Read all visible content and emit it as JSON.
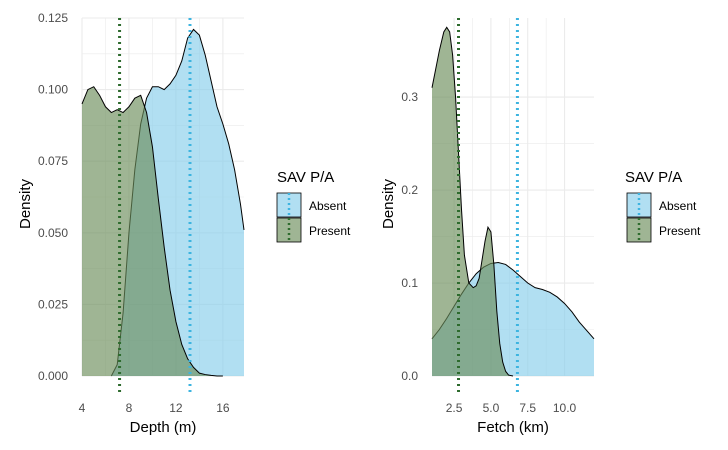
{
  "colors": {
    "absent_fill": "#87CEEB",
    "present_fill": "#6B8E5A",
    "absent_line": "#3DB4E0",
    "present_line": "#2E6B2E",
    "grid": "#ebebeb"
  },
  "chart_data": [
    {
      "type": "area",
      "subtype": "density",
      "title": "",
      "xlabel": "Depth (m)",
      "ylabel": "Density",
      "xlim": [
        4,
        17.8
      ],
      "ylim": [
        0,
        0.125
      ],
      "x_ticks": [
        4,
        8,
        12,
        16
      ],
      "x_tick_labels": [
        "4",
        "8",
        "12",
        "16"
      ],
      "y_ticks": [
        0,
        0.025,
        0.05,
        0.075,
        0.1,
        0.125
      ],
      "y_tick_labels": [
        "0.000",
        "0.025",
        "0.050",
        "0.075",
        "0.100",
        "0.125"
      ],
      "grid": true,
      "legend": {
        "title": "SAV P/A",
        "placement": "right",
        "entries": [
          "Absent",
          "Present"
        ]
      },
      "series": [
        {
          "name": "Absent",
          "color": "#87CEEB",
          "mean_line": 13.2,
          "x": [
            6.5,
            7.0,
            7.5,
            8.0,
            8.5,
            9.0,
            9.5,
            10.0,
            10.5,
            11.0,
            11.5,
            12.0,
            12.5,
            13.0,
            13.5,
            14.0,
            14.5,
            15.0,
            15.5,
            16.0,
            16.5,
            17.0,
            17.5,
            17.8
          ],
          "y": [
            0.0,
            0.004,
            0.022,
            0.05,
            0.072,
            0.088,
            0.097,
            0.101,
            0.101,
            0.1,
            0.102,
            0.105,
            0.11,
            0.118,
            0.121,
            0.119,
            0.112,
            0.103,
            0.094,
            0.088,
            0.081,
            0.072,
            0.06,
            0.051
          ]
        },
        {
          "name": "Present",
          "color": "#6B8E5A",
          "mean_line": 7.2,
          "x": [
            4.0,
            4.5,
            5.0,
            5.5,
            6.0,
            6.5,
            7.0,
            7.5,
            8.0,
            8.5,
            9.0,
            9.5,
            10.0,
            10.5,
            11.0,
            11.5,
            12.0,
            12.5,
            13.0,
            13.5,
            14.0,
            14.5,
            15.0,
            15.5,
            16.0
          ],
          "y": [
            0.095,
            0.1,
            0.101,
            0.098,
            0.094,
            0.092,
            0.093,
            0.092,
            0.094,
            0.097,
            0.098,
            0.092,
            0.08,
            0.062,
            0.045,
            0.03,
            0.019,
            0.011,
            0.006,
            0.003,
            0.001,
            0.0005,
            0.0002,
            0.0,
            0.0
          ]
        }
      ]
    },
    {
      "type": "area",
      "subtype": "density",
      "title": "",
      "xlabel": "Fetch (km)",
      "ylabel": "Density",
      "xlim": [
        1.0,
        12.0
      ],
      "ylim": [
        0,
        0.385
      ],
      "x_ticks": [
        2.5,
        5.0,
        7.5,
        10.0
      ],
      "x_tick_labels": [
        "2.5",
        "5.0",
        "7.5",
        "10.0"
      ],
      "y_ticks": [
        0,
        0.1,
        0.2,
        0.3
      ],
      "y_tick_labels": [
        "0.0",
        "0.1",
        "0.2",
        "0.3"
      ],
      "grid": true,
      "legend": {
        "title": "SAV P/A",
        "placement": "right",
        "entries": [
          "Absent",
          "Present"
        ]
      },
      "series": [
        {
          "name": "Absent",
          "color": "#87CEEB",
          "mean_line": 6.8,
          "x": [
            1.0,
            1.5,
            2.0,
            2.5,
            3.0,
            3.5,
            4.0,
            4.5,
            5.0,
            5.5,
            6.0,
            6.5,
            7.0,
            7.5,
            8.0,
            8.5,
            9.0,
            9.5,
            10.0,
            10.5,
            11.0,
            11.5,
            12.0
          ],
          "y": [
            0.04,
            0.05,
            0.062,
            0.075,
            0.088,
            0.1,
            0.11,
            0.117,
            0.121,
            0.122,
            0.12,
            0.114,
            0.107,
            0.1,
            0.095,
            0.093,
            0.09,
            0.085,
            0.078,
            0.069,
            0.058,
            0.049,
            0.04
          ]
        },
        {
          "name": "Present",
          "color": "#6B8E5A",
          "mean_line": 2.8,
          "x": [
            1.0,
            1.5,
            1.8,
            2.0,
            2.2,
            2.4,
            2.6,
            2.8,
            3.0,
            3.2,
            3.5,
            3.8,
            4.0,
            4.2,
            4.4,
            4.6,
            4.8,
            5.0,
            5.2,
            5.4,
            5.6,
            5.8,
            6.0,
            6.2,
            6.5
          ],
          "y": [
            0.31,
            0.35,
            0.37,
            0.375,
            0.37,
            0.345,
            0.3,
            0.24,
            0.18,
            0.13,
            0.1,
            0.095,
            0.097,
            0.105,
            0.125,
            0.145,
            0.16,
            0.155,
            0.12,
            0.07,
            0.035,
            0.015,
            0.005,
            0.001,
            0.0
          ]
        }
      ]
    }
  ]
}
